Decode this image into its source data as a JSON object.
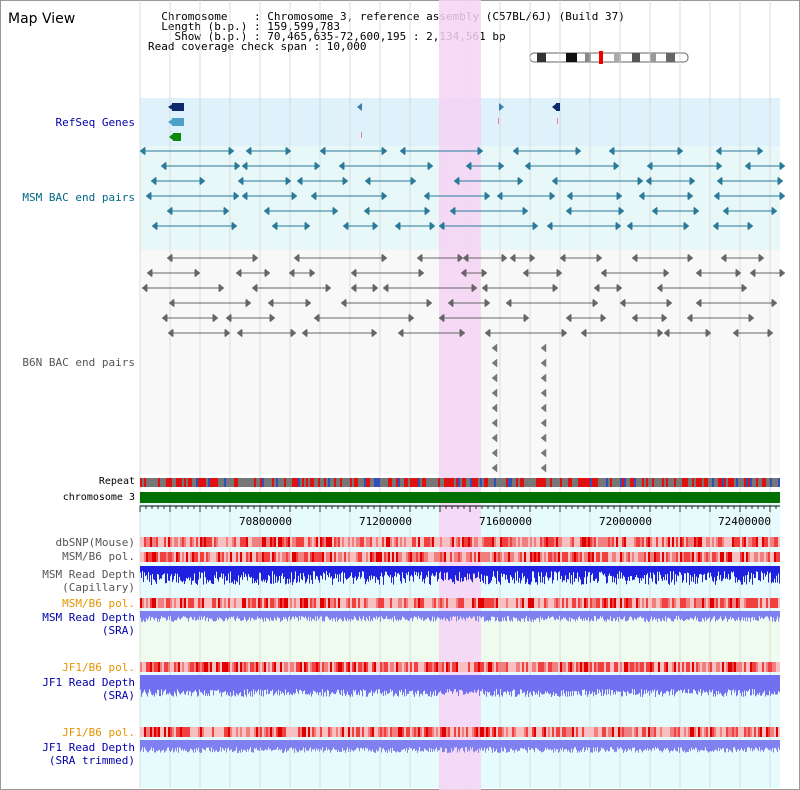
{
  "header": {
    "title": "Map View",
    "info_lines": [
      "  Chromosome    : Chromosome 3, reference assembly (C57BL/6J) (Build 37)",
      "  Length (b.p.) : 159,599,783",
      "    Show (b.p.) : 70,465,635-72,600,195 : 2,134,561 bp",
      "Read coverage check span : 10,000"
    ]
  },
  "tracks": {
    "refseq": "RefSeq Genes",
    "msm_bac": "MSM BAC end pairs",
    "b6n_bac": "B6N BAC end pairs",
    "repeat": "Repeat",
    "chromosome": "chromosome 3",
    "dbsnp": "dbSNP(Mouse)",
    "msm_b6_pol_1": "MSM/B6 pol.",
    "msm_read_depth_cap_1": "MSM Read Depth",
    "msm_read_depth_cap_2": "(Capillary)",
    "msm_b6_pol_2": "MSM/B6 pol.",
    "msm_read_depth_sra_1": "MSM Read Depth",
    "msm_read_depth_sra_2": "(SRA)",
    "jf1_b6_pol_1": "JF1/B6 pol.",
    "jf1_read_depth_sra_1": "JF1 Read Depth",
    "jf1_read_depth_sra_2": "(SRA)",
    "jf1_b6_pol_2": "JF1/B6 pol.",
    "jf1_read_depth_trim_1": "JF1 Read Depth",
    "jf1_read_depth_trim_2": "(SRA trimmed)"
  },
  "axis": {
    "ticks": [
      "70800000",
      "71200000",
      "71600000",
      "72000000",
      "72400000"
    ]
  },
  "colors": {
    "refseq_label": "#0000aa",
    "msm_label": "#006688",
    "b6n_label": "#555555",
    "orange_label": "#e69500",
    "blue_label": "#0000aa",
    "highlight": "#f6d3f4",
    "chromosome_bar": "#007000",
    "depth_blue": "#2020e0"
  }
}
